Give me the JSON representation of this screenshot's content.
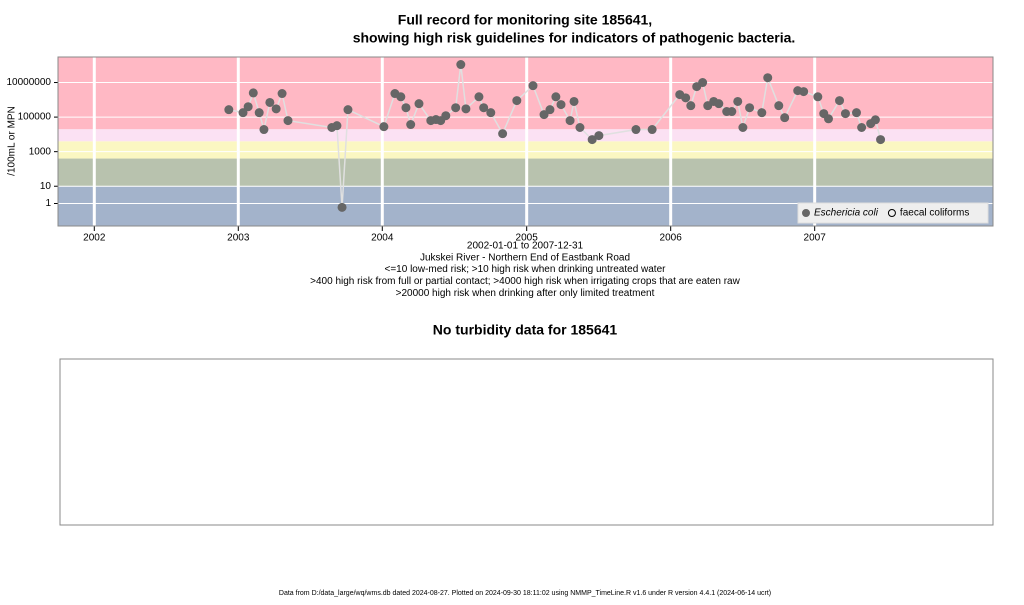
{
  "chart_data": [
    {
      "type": "scatter",
      "title": [
        "Full record for monitoring site 185641,",
        "showing high risk guidelines for indicators of pathogenic bacteria."
      ],
      "notes": [
        "2002-01-01 to 2007-12-31",
        "Jukskei River - Northern End of Eastbank Road",
        "<=10 low-med risk; >10 high risk when drinking untreated water",
        ">400 high risk from full or partial contact; >4000 high risk when irrigating crops that are eaten raw",
        ">20000 high risk when drinking after only limited treatment"
      ],
      "y_label": "/100mL or MPN",
      "log_y": true,
      "ylim": [
        0.05,
        300000000
      ],
      "yticks": [
        1,
        10,
        1000,
        100000,
        10000000
      ],
      "xlim": [
        "2001-10-01",
        "2008-03-28"
      ],
      "xticks": [
        {
          "value": "2002-01-01",
          "label": "2002"
        },
        {
          "value": "2003-01-01",
          "label": "2003"
        },
        {
          "value": "2004-01-01",
          "label": "2004"
        },
        {
          "value": "2005-01-01",
          "label": "2005"
        },
        {
          "value": "2006-01-01",
          "label": "2006"
        },
        {
          "value": "2007-01-01",
          "label": "2007"
        }
      ],
      "thresholds": [
        10,
        400,
        4000,
        20000
      ],
      "band_colors": [
        "#a3b3cb",
        "#b8c2ae",
        "#fbf7c2",
        "#fbe1f3",
        "#ffb8c4"
      ],
      "legend": "bottom-right",
      "series": [
        {
          "name": "Eschericia coli",
          "color": "#666666",
          "line_color": "#e0e0e0",
          "filled": true,
          "x": [
            "2002-12-08",
            "2003-01-13",
            "2003-01-26",
            "2003-02-08",
            "2003-02-23",
            "2003-03-07",
            "2003-03-22",
            "2003-04-07",
            "2003-04-22",
            "2003-05-07",
            "2003-08-26",
            "2003-09-08",
            "2003-09-21",
            "2003-10-06",
            "2004-01-05",
            "2004-02-02",
            "2004-02-17",
            "2004-03-01",
            "2004-03-13",
            "2004-04-03",
            "2004-05-03",
            "2004-05-16",
            "2004-05-28",
            "2004-06-10",
            "2004-07-05",
            "2004-07-18",
            "2004-07-31",
            "2004-09-02",
            "2004-09-14",
            "2004-10-02",
            "2004-11-01",
            "2004-12-07",
            "2005-01-17",
            "2005-02-14",
            "2005-03-01",
            "2005-03-16",
            "2005-03-29",
            "2005-04-21",
            "2005-05-01",
            "2005-05-16",
            "2005-06-16",
            "2005-07-03",
            "2005-10-05",
            "2005-11-15",
            "2006-01-24",
            "2006-02-08",
            "2006-02-21",
            "2006-03-08",
            "2006-03-23",
            "2006-04-05",
            "2006-04-20",
            "2006-05-03",
            "2006-05-23",
            "2006-06-05",
            "2006-06-20",
            "2006-07-03",
            "2006-07-20",
            "2006-08-20",
            "2006-09-04",
            "2006-10-02",
            "2006-10-17",
            "2006-11-19",
            "2006-12-04",
            "2007-01-09",
            "2007-01-24",
            "2007-02-05",
            "2007-03-05",
            "2007-03-20",
            "2007-04-17",
            "2007-04-30",
            "2007-05-23",
            "2007-06-04",
            "2007-06-17"
          ],
          "values": [
            270000,
            180000,
            400000,
            2500000,
            180000,
            19000,
            700000,
            300000,
            2300000,
            63000,
            25000,
            32000,
            0.6,
            270000,
            28000,
            2300000,
            1500000,
            350000,
            37000,
            600000,
            63000,
            72000,
            63000,
            120000,
            350000,
            110000000,
            300000,
            1500000,
            350000,
            180000,
            11000,
            900000,
            6600000,
            140000,
            270000,
            1500000,
            530000,
            63000,
            800000,
            25000,
            5000,
            8500,
            19000,
            19000,
            2000000,
            1300000,
            460000,
            5800000,
            10000000,
            460000,
            800000,
            600000,
            210000,
            210000,
            800000,
            25000,
            350000,
            180000,
            19000000,
            460000,
            93000,
            3400000,
            3000000,
            1500000,
            160000,
            80000,
            900000,
            160000,
            180000,
            25000,
            42000,
            70000,
            5000
          ]
        },
        {
          "name": "faecal coliforms",
          "color": "#000000",
          "filled": false,
          "x": [],
          "values": []
        }
      ]
    },
    {
      "type": "empty",
      "title": "No turbidity data for 185641"
    }
  ],
  "footer": "Data from D:/data_large/wq/wms.db dated 2024-08-27. Plotted on 2024-09-30 18:11:02 using NMMP_TimeLine.R v1.6 under R version 4.4.1 (2024-06-14 ucrt)"
}
